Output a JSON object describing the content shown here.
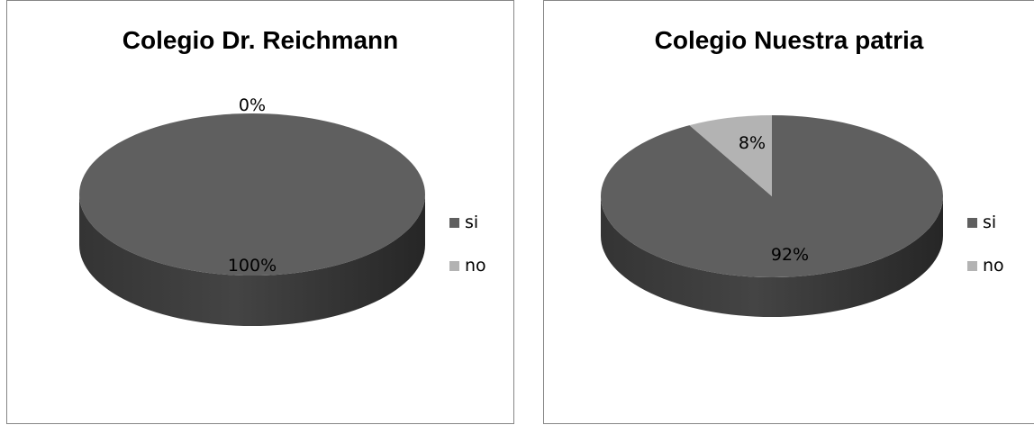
{
  "chart_data": [
    {
      "type": "pie",
      "title": "Colegio Dr. Reichmann",
      "categories": [
        "si",
        "no"
      ],
      "values": [
        100,
        0
      ],
      "data_labels": [
        "100%",
        "0%"
      ],
      "colors": [
        "#5f5f5f",
        "#b3b3b3"
      ],
      "style": "3d",
      "legend": "right"
    },
    {
      "type": "pie",
      "title": "Colegio Nuestra patria",
      "categories": [
        "si",
        "no"
      ],
      "values": [
        92,
        8
      ],
      "data_labels": [
        "92%",
        "8%"
      ],
      "colors": [
        "#5f5f5f",
        "#b3b3b3"
      ],
      "style": "3d",
      "legend": "right"
    }
  ]
}
